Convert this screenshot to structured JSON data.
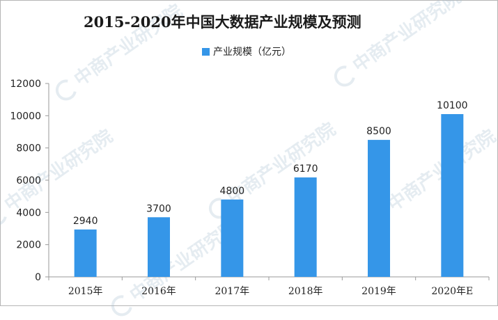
{
  "watermark": "中商产业研究院",
  "colors": {
    "bar": "#3596e8",
    "axis": "#9a9a9a"
  },
  "chart_data": {
    "type": "bar",
    "title": "2015-2020年中国大数据产业规模及预测",
    "categories": [
      "2015年",
      "2016年",
      "2017年",
      "2018年",
      "2019年",
      "2020年E"
    ],
    "series": [
      {
        "name": "产业规模（亿元）",
        "values": [
          2940,
          3700,
          4800,
          6170,
          8500,
          10100
        ]
      }
    ],
    "ylim": [
      0,
      12000
    ],
    "yticks": [
      0,
      2000,
      4000,
      6000,
      8000,
      10000,
      12000
    ],
    "grid": false,
    "legend_position": "top-center",
    "data_labels": true
  }
}
